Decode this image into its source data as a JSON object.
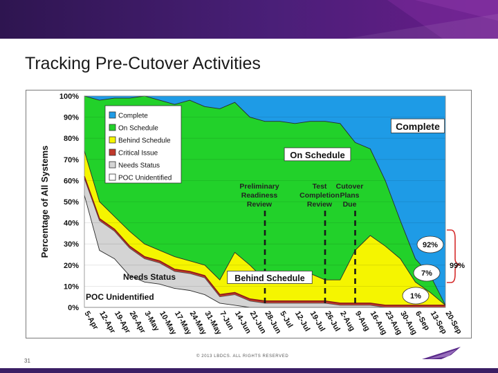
{
  "page": {
    "title": "Tracking Pre-Cutover Activities",
    "slide_number": "31",
    "copyright": "© 2013 LBDCS. ALL RIGHTS RESERVED"
  },
  "colors": {
    "banner": "#3d1d66",
    "complete": "#1e9be6",
    "on_schedule": "#22d12a",
    "behind_schedule": "#f5f500",
    "critical_issue": "#c0392b",
    "needs_status": "#d4d4d4",
    "poc_unidentified": "#ffffff",
    "bracket": "#d52b2b"
  },
  "chart_data": {
    "type": "area",
    "stacked": true,
    "ylabel": "Percentage of All Systems",
    "ylim": [
      0,
      100
    ],
    "y_ticks": [
      "0%",
      "10%",
      "20%",
      "30%",
      "40%",
      "50%",
      "60%",
      "70%",
      "80%",
      "90%",
      "100%"
    ],
    "grid": true,
    "legend_position": "top-left",
    "x": [
      "5-Apr",
      "12-Apr",
      "19-Apr",
      "26-Apr",
      "3-May",
      "10-May",
      "17-May",
      "24-May",
      "31-May",
      "7-Jun",
      "14-Jun",
      "21-Jun",
      "28-Jun",
      "5-Jul",
      "12-Jul",
      "19-Jul",
      "26-Jul",
      "2-Aug",
      "9-Aug",
      "16-Aug",
      "23-Aug",
      "30-Aug",
      "6-Sep",
      "13-Sep",
      "20-Sep"
    ],
    "series": [
      {
        "name": "POC Unidentified",
        "color": "#ffffff",
        "values": [
          53,
          27,
          23,
          15,
          12,
          11,
          9,
          8,
          6,
          2,
          1,
          0,
          0,
          0,
          0,
          0,
          0,
          0,
          0,
          0,
          0,
          0,
          0,
          0,
          0
        ]
      },
      {
        "name": "Needs Status",
        "color": "#d4d4d4",
        "values": [
          8,
          14,
          13,
          13,
          11,
          10,
          8,
          8,
          8,
          3,
          5,
          3,
          2,
          2,
          2,
          2,
          2,
          1,
          1,
          1,
          0,
          0,
          0,
          0,
          0
        ]
      },
      {
        "name": "Critical Issue",
        "color": "#c0392b",
        "values": [
          1,
          1,
          1,
          1,
          1,
          1,
          1,
          1,
          1,
          1,
          1,
          1,
          1,
          1,
          1,
          1,
          1,
          1,
          1,
          1,
          1,
          1,
          1,
          1,
          1
        ]
      },
      {
        "name": "Behind Schedule",
        "color": "#f5f500",
        "values": [
          12,
          8,
          6,
          7,
          6,
          5,
          6,
          5,
          5,
          7,
          19,
          16,
          10,
          11,
          11,
          13,
          10,
          11,
          25,
          32,
          28,
          22,
          11,
          6,
          0
        ]
      },
      {
        "name": "On Schedule",
        "color": "#22d12a",
        "values": [
          26,
          48,
          56,
          63,
          70,
          71,
          72,
          76,
          75,
          81,
          71,
          70,
          75,
          74,
          73,
          72,
          75,
          74,
          51,
          41,
          31,
          18,
          11,
          8,
          0
        ]
      },
      {
        "name": "Complete",
        "color": "#1e9be6",
        "values": [
          0,
          2,
          1,
          1,
          0,
          2,
          4,
          2,
          5,
          6,
          3,
          10,
          12,
          12,
          13,
          12,
          12,
          13,
          22,
          25,
          40,
          59,
          77,
          85,
          99
        ]
      }
    ],
    "area_labels": [
      {
        "text": "Complete",
        "boxed": true
      },
      {
        "text": "On Schedule",
        "boxed": true
      },
      {
        "text": "Behind Schedule",
        "boxed": true
      },
      {
        "text": "Needs Status",
        "boxed": false
      },
      {
        "text": "POC Unidentified",
        "boxed": false
      }
    ],
    "milestones": [
      {
        "label": "Preliminary Readiness Review",
        "x": "28-Jun"
      },
      {
        "label": "Test Completion Review",
        "x": "26-Jul"
      },
      {
        "label": "Cutover Plans Due",
        "x": "9-Aug"
      }
    ],
    "milestone_label_lines": [
      [
        "Preliminary",
        "Readiness",
        "Review"
      ],
      [
        "Test",
        "Completion",
        "Review"
      ],
      [
        "Cutover",
        "Plans",
        "Due"
      ]
    ],
    "callouts": [
      {
        "text": "92%"
      },
      {
        "text": "7%"
      },
      {
        "text": "1%"
      }
    ],
    "bracket_label": "99%"
  }
}
